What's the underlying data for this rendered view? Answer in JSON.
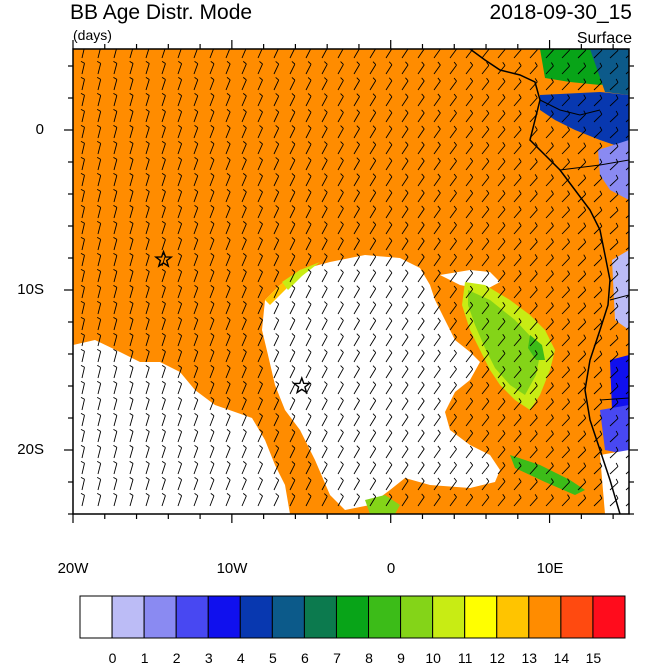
{
  "title": "BB Age Distr. Mode",
  "units": "(days)",
  "datetime": "2018-09-30_15",
  "level": "Surface",
  "lat_labels": [
    "0",
    "10S",
    "20S"
  ],
  "lon_labels": [
    "20W",
    "10W",
    "0",
    "10E"
  ],
  "colorbar": {
    "labels": [
      "0",
      "1",
      "2",
      "3",
      "4",
      "5",
      "6",
      "7",
      "8",
      "9",
      "10",
      "11",
      "12",
      "13",
      "14",
      "15"
    ],
    "colors": [
      "#ffffff",
      "#bcbcf6",
      "#8a8af2",
      "#4848f2",
      "#1010ee",
      "#0838b0",
      "#0c5a8a",
      "#0c7a4e",
      "#08a418",
      "#3cbc18",
      "#84d418",
      "#c8ec14",
      "#ffff00",
      "#ffc400",
      "#ff8c00",
      "#ff4a10",
      "#ff0c1c"
    ]
  },
  "markers": [
    {
      "name": "star-marker-west",
      "lon": -14.3,
      "lat": -8.1
    },
    {
      "name": "star-marker-center",
      "lon": -5.6,
      "lat": -16.0
    }
  ],
  "field": {
    "background_color": "#ff8c00",
    "clear_color": "#ffffff"
  }
}
